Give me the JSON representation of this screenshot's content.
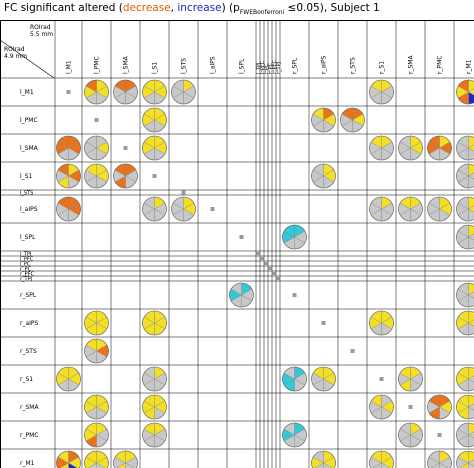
{
  "title": {
    "prefix": "FC significant altered (",
    "decrease": "decrease",
    "sep": ", ",
    "increase": "increase",
    "mid": ") (p",
    "sub": "FWEBonferroni",
    "suffix": " ≤0.05), Subject 1"
  },
  "roi_col_label": [
    "ROIrad",
    "5.5 mm"
  ],
  "roi_row_label": [
    "ROIrad",
    "4.9 mm"
  ],
  "colors": {
    "decrease": "#e8731a",
    "increase": "#1a2ac8",
    "altered": "#f3e026",
    "cyan": "#33c8d8",
    "base": "#c8c8c8",
    "diag": "#9a9a9a"
  },
  "regions": [
    "l_M1",
    "l_PMC",
    "l_SMA",
    "l_S1",
    "l_STS",
    "l_aIPS",
    "l_SPL",
    "l_TPJ",
    "l_PFC",
    "l_PC",
    "r_PC",
    "r_PFC",
    "r_TPJ",
    "r_SPL",
    "r_aIPS",
    "r_STS",
    "r_S1",
    "r_SMA",
    "r_PMC",
    "r_M1"
  ],
  "col_labels": [
    "l_M1",
    "l_PMC",
    "l_SMA",
    "l_S1",
    "l_STS",
    "l_aIPS",
    "l_SPL",
    "l_TPJ",
    "l_PFC",
    "l_PC",
    "r_PC",
    "r_PFC",
    "r_TPJ",
    "r_SPL",
    "r_aIPS",
    "r_STS",
    "r_S1",
    "r_SMA",
    "r_PMC",
    "r_M1"
  ],
  "row_labels": [
    "l_M1",
    "l_PMC",
    "l_SMA",
    "l_S1",
    "l_STS",
    "l_aIPS",
    "l_SPL",
    "l_TPJ",
    "l_PFC",
    "l_PC",
    "r_PC",
    "r_PFC",
    "r_TPJ",
    "r_SPL",
    "r_aIPS",
    "r_STS",
    "r_S1",
    "r_SMA",
    "r_PMC",
    "r_M1"
  ],
  "cells": [
    {
      "r": 0,
      "c": 1,
      "s": [
        "y",
        "y",
        "g",
        "g",
        "y",
        "o"
      ]
    },
    {
      "r": 0,
      "c": 2,
      "s": [
        "o",
        "g",
        "g",
        "g",
        "g",
        "o"
      ]
    },
    {
      "r": 0,
      "c": 3,
      "s": [
        "y",
        "y",
        "g",
        "g",
        "y",
        "y"
      ]
    },
    {
      "r": 0,
      "c": 4,
      "s": [
        "y",
        "g",
        "g",
        "g",
        "g",
        "g"
      ]
    },
    {
      "r": 0,
      "c": 16,
      "s": [
        "y",
        "g",
        "g",
        "g",
        "g",
        "y"
      ]
    },
    {
      "r": 0,
      "c": 19,
      "s": [
        "y",
        "y",
        "b",
        "o",
        "y",
        "o"
      ]
    },
    {
      "r": 1,
      "c": 3,
      "s": [
        "y",
        "y",
        "g",
        "g",
        "y",
        "y"
      ]
    },
    {
      "r": 1,
      "c": 14,
      "s": [
        "o",
        "y",
        "g",
        "g",
        "g",
        "y"
      ]
    },
    {
      "r": 1,
      "c": 15,
      "s": [
        "o",
        "y",
        "g",
        "g",
        "g",
        "o"
      ]
    },
    {
      "r": 2,
      "c": 0,
      "s": [
        "o",
        "o",
        "g",
        "g",
        "o",
        "o"
      ]
    },
    {
      "r": 2,
      "c": 1,
      "s": [
        "g",
        "y",
        "g",
        "g",
        "g",
        "g"
      ]
    },
    {
      "r": 2,
      "c": 3,
      "s": [
        "y",
        "y",
        "g",
        "g",
        "y",
        "y"
      ]
    },
    {
      "r": 2,
      "c": 16,
      "s": [
        "y",
        "g",
        "g",
        "g",
        "g",
        "y"
      ]
    },
    {
      "r": 2,
      "c": 17,
      "s": [
        "y",
        "y",
        "g",
        "g",
        "g",
        "g"
      ]
    },
    {
      "r": 2,
      "c": 18,
      "s": [
        "y",
        "o",
        "g",
        "g",
        "o",
        "o"
      ]
    },
    {
      "r": 2,
      "c": 19,
      "s": [
        "y",
        "y",
        "g",
        "g",
        "g",
        "g"
      ]
    },
    {
      "r": 3,
      "c": 0,
      "s": [
        "y",
        "o",
        "g",
        "y",
        "g",
        "o"
      ]
    },
    {
      "r": 3,
      "c": 1,
      "s": [
        "y",
        "y",
        "g",
        "g",
        "g",
        "y"
      ]
    },
    {
      "r": 3,
      "c": 2,
      "s": [
        "o",
        "g",
        "g",
        "o",
        "g",
        "o"
      ]
    },
    {
      "r": 3,
      "c": 14,
      "s": [
        "y",
        "y",
        "g",
        "g",
        "g",
        "g"
      ]
    },
    {
      "r": 3,
      "c": 19,
      "s": [
        "y",
        "g",
        "g",
        "g",
        "g",
        "g"
      ]
    },
    {
      "r": 5,
      "c": 0,
      "s": [
        "o",
        "o",
        "g",
        "g",
        "g",
        "o"
      ]
    },
    {
      "r": 5,
      "c": 3,
      "s": [
        "y",
        "g",
        "g",
        "g",
        "g",
        "g"
      ]
    },
    {
      "r": 5,
      "c": 4,
      "s": [
        "y",
        "y",
        "g",
        "g",
        "g",
        "g"
      ]
    },
    {
      "r": 5,
      "c": 16,
      "s": [
        "y",
        "g",
        "g",
        "g",
        "g",
        "g"
      ]
    },
    {
      "r": 5,
      "c": 17,
      "s": [
        "y",
        "g",
        "g",
        "g",
        "g",
        "y"
      ]
    },
    {
      "r": 5,
      "c": 18,
      "s": [
        "y",
        "y",
        "g",
        "g",
        "g",
        "g"
      ]
    },
    {
      "r": 5,
      "c": 19,
      "s": [
        "y",
        "y",
        "g",
        "g",
        "g",
        "g"
      ]
    },
    {
      "r": 6,
      "c": 13,
      "s": [
        "c",
        "g",
        "g",
        "g",
        "c",
        "c"
      ]
    },
    {
      "r": 6,
      "c": 19,
      "s": [
        "y",
        "g",
        "g",
        "g",
        "g",
        "g"
      ]
    },
    {
      "r": 13,
      "c": 6,
      "s": [
        "c",
        "g",
        "g",
        "g",
        "c",
        "g"
      ]
    },
    {
      "r": 13,
      "c": 19,
      "s": [
        "y",
        "g",
        "g",
        "g",
        "g",
        "g"
      ]
    },
    {
      "r": 14,
      "c": 1,
      "s": [
        "y",
        "y",
        "y",
        "y",
        "y",
        "y"
      ]
    },
    {
      "r": 14,
      "c": 3,
      "s": [
        "y",
        "y",
        "y",
        "y",
        "y",
        "y"
      ]
    },
    {
      "r": 14,
      "c": 16,
      "s": [
        "y",
        "y",
        "g",
        "g",
        "y",
        "y"
      ]
    },
    {
      "r": 14,
      "c": 19,
      "s": [
        "y",
        "y",
        "g",
        "g",
        "y",
        "y"
      ]
    },
    {
      "r": 15,
      "c": 1,
      "s": [
        "y",
        "o",
        "g",
        "g",
        "g",
        "y"
      ]
    },
    {
      "r": 16,
      "c": 0,
      "s": [
        "y",
        "y",
        "g",
        "g",
        "y",
        "y"
      ]
    },
    {
      "r": 16,
      "c": 3,
      "s": [
        "y",
        "g",
        "g",
        "g",
        "g",
        "g"
      ]
    },
    {
      "r": 16,
      "c": 13,
      "s": [
        "c",
        "g",
        "g",
        "c",
        "c",
        "g"
      ]
    },
    {
      "r": 16,
      "c": 14,
      "s": [
        "y",
        "y",
        "g",
        "g",
        "g",
        "y"
      ]
    },
    {
      "r": 16,
      "c": 17,
      "s": [
        "y",
        "g",
        "g",
        "y",
        "g",
        "y"
      ]
    },
    {
      "r": 16,
      "c": 19,
      "s": [
        "y",
        "g",
        "g",
        "g",
        "y",
        "y"
      ]
    },
    {
      "r": 17,
      "c": 1,
      "s": [
        "y",
        "y",
        "g",
        "g",
        "y",
        "y"
      ]
    },
    {
      "r": 17,
      "c": 3,
      "s": [
        "y",
        "y",
        "g",
        "y",
        "y",
        "y"
      ]
    },
    {
      "r": 17,
      "c": 16,
      "s": [
        "g",
        "y",
        "g",
        "g",
        "g",
        "y"
      ]
    },
    {
      "r": 17,
      "c": 18,
      "s": [
        "o",
        "y",
        "g",
        "o",
        "g",
        "o"
      ]
    },
    {
      "r": 17,
      "c": 19,
      "s": [
        "y",
        "g",
        "g",
        "y",
        "y",
        "y"
      ]
    },
    {
      "r": 18,
      "c": 1,
      "s": [
        "y",
        "g",
        "g",
        "o",
        "y",
        "y"
      ]
    },
    {
      "r": 18,
      "c": 3,
      "s": [
        "y",
        "g",
        "g",
        "g",
        "g",
        "y"
      ]
    },
    {
      "r": 18,
      "c": 13,
      "s": [
        "c",
        "g",
        "g",
        "g",
        "c",
        "g"
      ]
    },
    {
      "r": 18,
      "c": 17,
      "s": [
        "y",
        "g",
        "g",
        "g",
        "g",
        "g"
      ]
    },
    {
      "r": 18,
      "c": 19,
      "s": [
        "y",
        "g",
        "g",
        "g",
        "g",
        "g"
      ]
    },
    {
      "r": 19,
      "c": 0,
      "s": [
        "o",
        "y",
        "b",
        "y",
        "o",
        "y"
      ]
    },
    {
      "r": 19,
      "c": 1,
      "s": [
        "y",
        "y",
        "g",
        "g",
        "y",
        "y"
      ]
    },
    {
      "r": 19,
      "c": 2,
      "s": [
        "y",
        "g",
        "g",
        "y",
        "g",
        "y"
      ]
    },
    {
      "r": 19,
      "c": 14,
      "s": [
        "y",
        "y",
        "g",
        "g",
        "y",
        "g"
      ]
    },
    {
      "r": 19,
      "c": 16,
      "s": [
        "y",
        "y",
        "g",
        "g",
        "g",
        "y"
      ]
    },
    {
      "r": 19,
      "c": 18,
      "s": [
        "y",
        "g",
        "g",
        "g",
        "g",
        "g"
      ]
    },
    {
      "r": 19,
      "c": 19,
      "s": [
        "y",
        "g",
        "g",
        "y",
        "g",
        "y"
      ]
    }
  ]
}
